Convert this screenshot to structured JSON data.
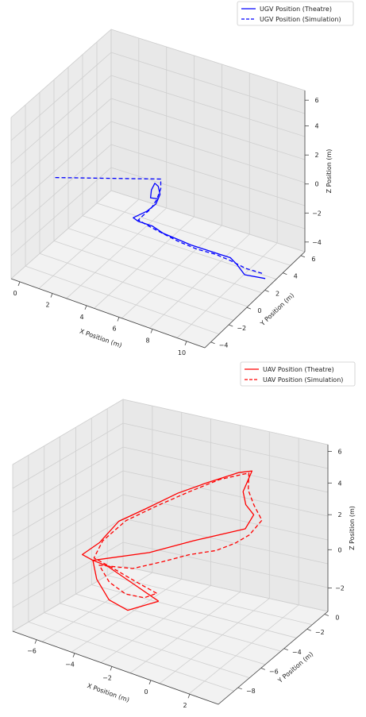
{
  "chart_data": [
    {
      "type": "line",
      "xlabel": "X Position (m)",
      "ylabel": "Y Position (m)",
      "zlabel": "Z Position (m)",
      "x_ticks": [
        "0",
        "2",
        "4",
        "6",
        "8",
        "10"
      ],
      "y_ticks": [
        "−4",
        "−2",
        "0",
        "2",
        "4",
        "6"
      ],
      "z_ticks": [
        "−4",
        "−2",
        "0",
        "2",
        "4",
        "6"
      ],
      "xlim": [
        -1,
        11
      ],
      "ylim": [
        -5,
        6
      ],
      "zlim": [
        -5,
        6.5
      ],
      "grid": true,
      "legend_position": "top-right",
      "series": [
        {
          "name": "UGV Position (Theatre)",
          "color": "#0000ff",
          "style": "solid",
          "points": [
            [
              10.8,
              2.0,
              -4.5
            ],
            [
              9.8,
              1.5,
              -4.3
            ],
            [
              9.5,
              1.2,
              -3.5
            ],
            [
              9.2,
              1.0,
              -3.0
            ],
            [
              8.8,
              0.5,
              -2.6
            ],
            [
              8.2,
              0.0,
              -2.2
            ],
            [
              7.6,
              -0.5,
              -1.8
            ],
            [
              7.0,
              -1.0,
              -1.3
            ],
            [
              6.4,
              -1.4,
              -0.9
            ],
            [
              5.9,
              -1.7,
              -0.4
            ],
            [
              5.3,
              -2.2,
              0.0
            ],
            [
              5.1,
              -2.4,
              0.3
            ],
            [
              5.6,
              -1.8,
              0.6
            ],
            [
              6.0,
              -1.5,
              1.1
            ],
            [
              6.2,
              -1.4,
              1.8
            ],
            [
              6.2,
              -1.6,
              2.5
            ],
            [
              6.1,
              -1.8,
              2.8
            ],
            [
              6.0,
              -2.0,
              2.4
            ],
            [
              6.0,
              -2.1,
              1.9
            ],
            [
              6.2,
              -1.6,
              1.6
            ]
          ]
        },
        {
          "name": "UGV Position (Simulation)",
          "color": "#0000ff",
          "style": "dashed",
          "points": [
            [
              10.6,
              2.0,
              -4.2
            ],
            [
              9.8,
              1.6,
              -3.9
            ],
            [
              9.2,
              1.1,
              -3.3
            ],
            [
              8.6,
              0.5,
              -2.7
            ],
            [
              7.8,
              -0.2,
              -2.2
            ],
            [
              7.0,
              -0.8,
              -1.6
            ],
            [
              6.3,
              -1.3,
              -1.0
            ],
            [
              5.7,
              -1.8,
              -0.4
            ],
            [
              5.3,
              -2.2,
              0.1
            ],
            [
              5.5,
              -2.0,
              0.4
            ],
            [
              5.8,
              -1.7,
              0.8
            ],
            [
              6.1,
              -1.6,
              1.5
            ],
            [
              6.3,
              -1.5,
              2.3
            ],
            [
              6.3,
              -1.5,
              3.0
            ],
            [
              0.0,
              -2.0,
              0.9
            ]
          ]
        }
      ]
    },
    {
      "type": "line",
      "xlabel": "X Position (m)",
      "ylabel": "Y Position (m)",
      "zlabel": "Z Position (m)",
      "x_ticks": [
        "−6",
        "−4",
        "−2",
        "0",
        "2"
      ],
      "y_ticks": [
        "−8",
        "−6",
        "−4",
        "−2",
        "0"
      ],
      "z_ticks": [
        "−2",
        "0",
        "2",
        "4",
        "6"
      ],
      "xlim": [
        -7,
        3
      ],
      "ylim": [
        -9,
        1
      ],
      "zlim": [
        -3.5,
        6.5
      ],
      "grid": true,
      "legend_position": "top-right",
      "series": [
        {
          "name": "UAV Position (Theatre)",
          "color": "#ff0000",
          "style": "solid",
          "points": [
            [
              -1.4,
              -6.2,
              -0.6
            ],
            [
              -2.5,
              -6.2,
              -0.1
            ],
            [
              -4.0,
              -6.0,
              0.4
            ],
            [
              -4.6,
              -6.2,
              0.6
            ],
            [
              -4.9,
              -6.6,
              1.0
            ],
            [
              -4.6,
              -5.6,
              1.4
            ],
            [
              -4.2,
              -4.6,
              2.4
            ],
            [
              -3.4,
              -3.6,
              3.0
            ],
            [
              -2.4,
              -2.6,
              3.8
            ],
            [
              -1.5,
              -1.8,
              4.3
            ],
            [
              -0.4,
              -0.8,
              4.8
            ],
            [
              0.1,
              -0.5,
              4.9
            ],
            [
              0.2,
              -1.5,
              4.2
            ],
            [
              0.6,
              -2.0,
              3.8
            ],
            [
              1.2,
              -2.4,
              3.6
            ],
            [
              1.0,
              -2.8,
              2.9
            ],
            [
              0.4,
              -3.0,
              2.6
            ],
            [
              -1.0,
              -3.8,
              2.0
            ],
            [
              -2.6,
              -4.8,
              1.2
            ],
            [
              -4.6,
              -6.2,
              0.6
            ],
            [
              -4.2,
              -6.6,
              -0.2
            ],
            [
              -3.6,
              -6.6,
              -1.2
            ],
            [
              -2.8,
              -6.4,
              -1.6
            ],
            [
              -2.2,
              -6.2,
              -1.2
            ],
            [
              -1.4,
              -6.2,
              -0.6
            ]
          ]
        },
        {
          "name": "UAV Position (Simulation)",
          "color": "#ff0000",
          "style": "dashed",
          "points": [
            [
              -1.6,
              -6.0,
              -0.3
            ],
            [
              -2.6,
              -6.0,
              0.0
            ],
            [
              -3.8,
              -6.0,
              0.4
            ],
            [
              -4.6,
              -6.1,
              0.7
            ],
            [
              -4.5,
              -5.5,
              1.5
            ],
            [
              -3.9,
              -4.5,
              2.5
            ],
            [
              -3.0,
              -3.4,
              3.2
            ],
            [
              -2.0,
              -2.4,
              3.9
            ],
            [
              -1.0,
              -1.4,
              4.5
            ],
            [
              0.0,
              -0.6,
              4.8
            ],
            [
              0.4,
              -1.4,
              4.3
            ],
            [
              1.0,
              -2.0,
              3.9
            ],
            [
              1.6,
              -2.4,
              3.4
            ],
            [
              1.2,
              -2.8,
              2.6
            ],
            [
              0.6,
              -3.0,
              2.0
            ],
            [
              -0.2,
              -3.2,
              1.4
            ],
            [
              -1.2,
              -3.8,
              1.1
            ],
            [
              -2.2,
              -4.4,
              0.6
            ],
            [
              -3.2,
              -5.2,
              0.2
            ],
            [
              -4.4,
              -6.0,
              0.3
            ],
            [
              -3.8,
              -6.2,
              -0.4
            ],
            [
              -3.0,
              -6.2,
              -0.8
            ],
            [
              -2.2,
              -6.0,
              -0.8
            ],
            [
              -1.6,
              -6.0,
              -0.3
            ]
          ]
        }
      ]
    }
  ]
}
